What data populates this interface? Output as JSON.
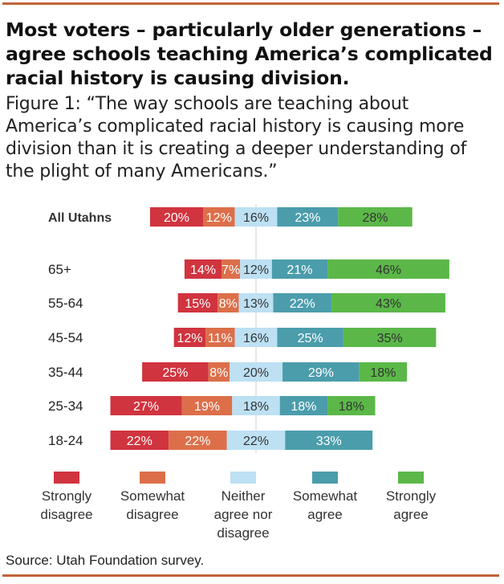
{
  "title": "Most voters – particularly older generations – agree schools teaching America’s complicated racial history is causing division.",
  "subtitle": "Figure 1: “The way schools are teaching about America’s complicated racial history is causing more division than it is creating a deeper understanding of the plight of many Americans.”",
  "source": "Source: Utah Foundation survey.",
  "colors": {
    "strongly_disagree": "#d0343f",
    "somewhat_disagree": "#dc6f4a",
    "neither": "#bde0f3",
    "somewhat_agree": "#4b9dac",
    "strongly_agree": "#5bb848"
  },
  "chart_data": {
    "type": "bar",
    "orientation": "horizontal",
    "stacked": "diverging",
    "categories": [
      "All Utahns",
      "65+",
      "55-64",
      "45-54",
      "35-44",
      "25-34",
      "18-24"
    ],
    "series": [
      {
        "name": "Strongly disagree",
        "values": [
          20,
          14,
          15,
          12,
          25,
          27,
          22
        ]
      },
      {
        "name": "Somewhat disagree",
        "values": [
          12,
          7,
          8,
          11,
          8,
          19,
          22
        ]
      },
      {
        "name": "Neither agree nor disagree",
        "values": [
          16,
          12,
          13,
          16,
          20,
          18,
          22
        ]
      },
      {
        "name": "Somewhat agree",
        "values": [
          23,
          21,
          22,
          25,
          29,
          18,
          33
        ]
      },
      {
        "name": "Strongly agree",
        "values": [
          28,
          46,
          43,
          35,
          18,
          18,
          0
        ]
      }
    ],
    "legend": [
      "Strongly disagree",
      "Somewhat disagree",
      "Neither agree nor disagree",
      "Somewhat agree",
      "Strongly agree"
    ],
    "legend_lines": [
      [
        "Strongly",
        "disagree"
      ],
      [
        "Somewhat",
        "disagree"
      ],
      [
        "Neither",
        "agree nor",
        "disagree"
      ],
      [
        "Somewhat",
        "agree"
      ],
      [
        "Strongly",
        "agree"
      ]
    ],
    "legend_position": "bottom",
    "value_labels": true,
    "label_suffix": "%",
    "grid": false
  }
}
